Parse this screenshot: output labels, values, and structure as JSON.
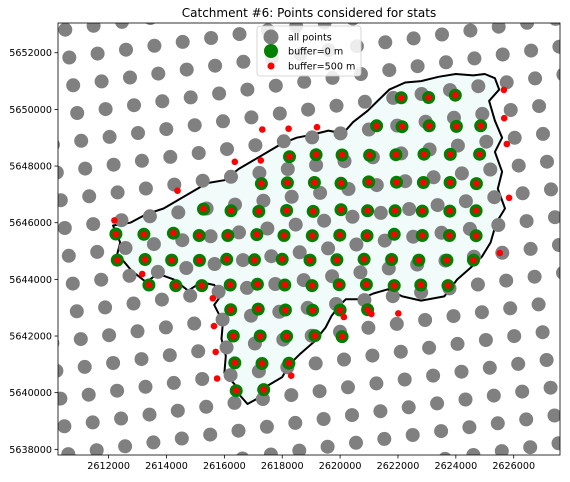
{
  "chart_data": {
    "type": "scatter",
    "title": "Catchment #6: Points considered for stats",
    "xlabel": "",
    "ylabel": "",
    "xlim": [
      2610250,
      2627600
    ],
    "ylim": [
      5637800,
      5653050
    ],
    "xticks": [
      2612000,
      2614000,
      2616000,
      2618000,
      2620000,
      2622000,
      2624000,
      2626000
    ],
    "yticks": [
      5638000,
      5640000,
      5642000,
      5644000,
      5646000,
      5648000,
      5650000,
      5652000
    ],
    "grid": false,
    "legend_position": "upper-center",
    "colors": {
      "all_points": "#808080",
      "buffer_0": "#008000",
      "buffer_500": "#ff0000",
      "boundary": "#000000",
      "catchment_fill": "#f0fbfa"
    },
    "series": [
      {
        "name": "all points",
        "generator": "regular grid, ~990 m spacing, rotated ~8 degrees, covering the whole map",
        "points": []
      },
      {
        "name": "buffer=0 m",
        "points": [
          [
            2622110,
            5650410
          ],
          [
            2623060,
            5650420
          ],
          [
            2623980,
            5650500
          ],
          [
            2621260,
            5649420
          ],
          [
            2622140,
            5649390
          ],
          [
            2623080,
            5649420
          ],
          [
            2624020,
            5649400
          ],
          [
            2624860,
            5649420
          ],
          [
            2618250,
            5648330
          ],
          [
            2619170,
            5648400
          ],
          [
            2620070,
            5648390
          ],
          [
            2621020,
            5648380
          ],
          [
            2621930,
            5648400
          ],
          [
            2622900,
            5648420
          ],
          [
            2623810,
            5648410
          ],
          [
            2624820,
            5648420
          ],
          [
            2617280,
            5647380
          ],
          [
            2618180,
            5647410
          ],
          [
            2619110,
            5647420
          ],
          [
            2620030,
            5647390
          ],
          [
            2620990,
            5647440
          ],
          [
            2621950,
            5647430
          ],
          [
            2622880,
            5647420
          ],
          [
            2623800,
            5647420
          ],
          [
            2624710,
            5647380
          ],
          [
            2615280,
            5646480
          ],
          [
            2616230,
            5646420
          ],
          [
            2617190,
            5646400
          ],
          [
            2618150,
            5646430
          ],
          [
            2619070,
            5646400
          ],
          [
            2620030,
            5646460
          ],
          [
            2620950,
            5646420
          ],
          [
            2621900,
            5646420
          ],
          [
            2622840,
            5646410
          ],
          [
            2623790,
            5646410
          ],
          [
            2624700,
            5646420
          ],
          [
            2612250,
            5645600
          ],
          [
            2613220,
            5645590
          ],
          [
            2614240,
            5645630
          ],
          [
            2615130,
            5645550
          ],
          [
            2616120,
            5645550
          ],
          [
            2617120,
            5645580
          ],
          [
            2618060,
            5645550
          ],
          [
            2619040,
            5645540
          ],
          [
            2619990,
            5645560
          ],
          [
            2620930,
            5645540
          ],
          [
            2621870,
            5645590
          ],
          [
            2622840,
            5645550
          ],
          [
            2623780,
            5645550
          ],
          [
            2624700,
            5645540
          ],
          [
            2612300,
            5644680
          ],
          [
            2613260,
            5644700
          ],
          [
            2614180,
            5644680
          ],
          [
            2615140,
            5644670
          ],
          [
            2616080,
            5644710
          ],
          [
            2617040,
            5644690
          ],
          [
            2618000,
            5644710
          ],
          [
            2618960,
            5644680
          ],
          [
            2619890,
            5644690
          ],
          [
            2620830,
            5644710
          ],
          [
            2621780,
            5644700
          ],
          [
            2622720,
            5644680
          ],
          [
            2623690,
            5644680
          ],
          [
            2624610,
            5644680
          ],
          [
            2613390,
            5643800
          ],
          [
            2614320,
            5643780
          ],
          [
            2615220,
            5643780
          ],
          [
            2616200,
            5643800
          ],
          [
            2617140,
            5643830
          ],
          [
            2618090,
            5643800
          ],
          [
            2619030,
            5643780
          ],
          [
            2619970,
            5643810
          ],
          [
            2620910,
            5643820
          ],
          [
            2621870,
            5643780
          ],
          [
            2622790,
            5643800
          ],
          [
            2623730,
            5643780
          ],
          [
            2616220,
            5642930
          ],
          [
            2617170,
            5642950
          ],
          [
            2618110,
            5642920
          ],
          [
            2619050,
            5642910
          ],
          [
            2620000,
            5642920
          ],
          [
            2620950,
            5642930
          ],
          [
            2616310,
            5642000
          ],
          [
            2617240,
            5642000
          ],
          [
            2618150,
            5641990
          ],
          [
            2619130,
            5642010
          ],
          [
            2620070,
            5641980
          ],
          [
            2616360,
            5641050
          ],
          [
            2617300,
            5641030
          ],
          [
            2618230,
            5641040
          ],
          [
            2616410,
            5640070
          ],
          [
            2617360,
            5640110
          ]
        ]
      },
      {
        "name": "buffer=500 m",
        "points": [
          [
            2622110,
            5650410
          ],
          [
            2623060,
            5650420
          ],
          [
            2623980,
            5650500
          ],
          [
            2625660,
            5650690
          ],
          [
            2621260,
            5649420
          ],
          [
            2622140,
            5649390
          ],
          [
            2623080,
            5649420
          ],
          [
            2624020,
            5649400
          ],
          [
            2624860,
            5649420
          ],
          [
            2625670,
            5649690
          ],
          [
            2617310,
            5649290
          ],
          [
            2618220,
            5649320
          ],
          [
            2619200,
            5649370
          ],
          [
            2618250,
            5648330
          ],
          [
            2619170,
            5648400
          ],
          [
            2620070,
            5648390
          ],
          [
            2621020,
            5648380
          ],
          [
            2621930,
            5648400
          ],
          [
            2622900,
            5648420
          ],
          [
            2623810,
            5648410
          ],
          [
            2624820,
            5648420
          ],
          [
            2625760,
            5648780
          ],
          [
            2616360,
            5648150
          ],
          [
            2617260,
            5648200
          ],
          [
            2617280,
            5647380
          ],
          [
            2618180,
            5647410
          ],
          [
            2619110,
            5647420
          ],
          [
            2620030,
            5647390
          ],
          [
            2620990,
            5647440
          ],
          [
            2621950,
            5647430
          ],
          [
            2622880,
            5647420
          ],
          [
            2623800,
            5647420
          ],
          [
            2624710,
            5647380
          ],
          [
            2614380,
            5647130
          ],
          [
            2615280,
            5646480
          ],
          [
            2616230,
            5646420
          ],
          [
            2617190,
            5646400
          ],
          [
            2618150,
            5646430
          ],
          [
            2619070,
            5646400
          ],
          [
            2620030,
            5646460
          ],
          [
            2620950,
            5646420
          ],
          [
            2621900,
            5646420
          ],
          [
            2622840,
            5646410
          ],
          [
            2623790,
            5646410
          ],
          [
            2624700,
            5646420
          ],
          [
            2625840,
            5646880
          ],
          [
            2612200,
            5646080
          ],
          [
            2612250,
            5645600
          ],
          [
            2613220,
            5645590
          ],
          [
            2614240,
            5645630
          ],
          [
            2615130,
            5645550
          ],
          [
            2616120,
            5645550
          ],
          [
            2617120,
            5645580
          ],
          [
            2618060,
            5645550
          ],
          [
            2619040,
            5645540
          ],
          [
            2619990,
            5645560
          ],
          [
            2620930,
            5645540
          ],
          [
            2621870,
            5645590
          ],
          [
            2622840,
            5645550
          ],
          [
            2623780,
            5645550
          ],
          [
            2624700,
            5645540
          ],
          [
            2612300,
            5644680
          ],
          [
            2613260,
            5644700
          ],
          [
            2614180,
            5644680
          ],
          [
            2615140,
            5644670
          ],
          [
            2616080,
            5644710
          ],
          [
            2617040,
            5644690
          ],
          [
            2618000,
            5644710
          ],
          [
            2618960,
            5644680
          ],
          [
            2619890,
            5644690
          ],
          [
            2620830,
            5644710
          ],
          [
            2621780,
            5644700
          ],
          [
            2622720,
            5644680
          ],
          [
            2623690,
            5644680
          ],
          [
            2624610,
            5644680
          ],
          [
            2625520,
            5644930
          ],
          [
            2613160,
            5644190
          ],
          [
            2613390,
            5643800
          ],
          [
            2614320,
            5643780
          ],
          [
            2615220,
            5643780
          ],
          [
            2616200,
            5643800
          ],
          [
            2617140,
            5643830
          ],
          [
            2618090,
            5643800
          ],
          [
            2619030,
            5643780
          ],
          [
            2619970,
            5643810
          ],
          [
            2620910,
            5643820
          ],
          [
            2621870,
            5643780
          ],
          [
            2622790,
            5643800
          ],
          [
            2623730,
            5643780
          ],
          [
            2615600,
            5643330
          ],
          [
            2616220,
            5642930
          ],
          [
            2617170,
            5642950
          ],
          [
            2618110,
            5642920
          ],
          [
            2619050,
            5642910
          ],
          [
            2620000,
            5642920
          ],
          [
            2620950,
            5642930
          ],
          [
            2620130,
            5642670
          ],
          [
            2621080,
            5642780
          ],
          [
            2622010,
            5642800
          ],
          [
            2615640,
            5642350
          ],
          [
            2616310,
            5642000
          ],
          [
            2617240,
            5642000
          ],
          [
            2618150,
            5641990
          ],
          [
            2619130,
            5642010
          ],
          [
            2620070,
            5641980
          ],
          [
            2615700,
            5641440
          ],
          [
            2616360,
            5641050
          ],
          [
            2617300,
            5641030
          ],
          [
            2618230,
            5641040
          ],
          [
            2615750,
            5640500
          ],
          [
            2616410,
            5640070
          ],
          [
            2617360,
            5640110
          ],
          [
            2618310,
            5640600
          ]
        ]
      }
    ],
    "boundary_polygon": [
      [
        2625350,
        5651100
      ],
      [
        2625500,
        5650700
      ],
      [
        2625150,
        5650300
      ],
      [
        2625350,
        5649600
      ],
      [
        2625600,
        5649000
      ],
      [
        2625350,
        5648500
      ],
      [
        2625600,
        5647800
      ],
      [
        2625450,
        5647200
      ],
      [
        2625700,
        5646500
      ],
      [
        2625400,
        5646000
      ],
      [
        2625200,
        5645300
      ],
      [
        2624900,
        5644800
      ],
      [
        2624500,
        5644400
      ],
      [
        2624050,
        5644000
      ],
      [
        2623600,
        5643400
      ],
      [
        2622800,
        5643250
      ],
      [
        2622150,
        5643400
      ],
      [
        2621650,
        5643650
      ],
      [
        2621150,
        5643500
      ],
      [
        2620700,
        5643300
      ],
      [
        2620200,
        5643300
      ],
      [
        2619950,
        5643050
      ],
      [
        2619700,
        5642700
      ],
      [
        2619500,
        5642300
      ],
      [
        2619100,
        5641800
      ],
      [
        2618600,
        5641350
      ],
      [
        2618250,
        5641000
      ],
      [
        2618000,
        5640550
      ],
      [
        2617500,
        5640250
      ],
      [
        2617250,
        5639850
      ],
      [
        2616800,
        5639600
      ],
      [
        2616500,
        5639950
      ],
      [
        2616350,
        5640300
      ],
      [
        2616000,
        5640700
      ],
      [
        2616050,
        5641300
      ],
      [
        2615900,
        5641900
      ],
      [
        2615950,
        5642500
      ],
      [
        2615650,
        5643100
      ],
      [
        2615900,
        5643450
      ],
      [
        2615650,
        5643800
      ],
      [
        2615200,
        5643900
      ],
      [
        2614750,
        5643600
      ],
      [
        2614250,
        5644000
      ],
      [
        2613700,
        5644200
      ],
      [
        2613300,
        5643900
      ],
      [
        2612800,
        5644300
      ],
      [
        2612300,
        5644900
      ],
      [
        2612400,
        5645300
      ],
      [
        2612150,
        5645900
      ],
      [
        2612750,
        5646000
      ],
      [
        2613300,
        5646300
      ],
      [
        2613900,
        5646500
      ],
      [
        2614400,
        5646800
      ],
      [
        2614900,
        5647100
      ],
      [
        2615400,
        5647400
      ],
      [
        2616000,
        5647500
      ],
      [
        2616500,
        5647900
      ],
      [
        2617000,
        5648200
      ],
      [
        2617500,
        5648500
      ],
      [
        2618000,
        5648800
      ],
      [
        2618500,
        5649000
      ],
      [
        2619000,
        5649100
      ],
      [
        2619600,
        5649250
      ],
      [
        2620100,
        5649150
      ],
      [
        2620450,
        5649550
      ],
      [
        2620950,
        5649950
      ],
      [
        2621300,
        5650300
      ],
      [
        2621700,
        5650700
      ],
      [
        2622250,
        5650950
      ],
      [
        2622800,
        5651000
      ],
      [
        2623400,
        5651150
      ],
      [
        2624000,
        5651250
      ],
      [
        2624600,
        5651200
      ],
      [
        2625000,
        5651250
      ]
    ]
  },
  "legend": {
    "items": [
      {
        "label": "all points",
        "marker": "gray-circle-large"
      },
      {
        "label": "buffer=0 m",
        "marker": "green-circle-medium"
      },
      {
        "label": "buffer=500 m",
        "marker": "red-circle-small"
      }
    ]
  }
}
